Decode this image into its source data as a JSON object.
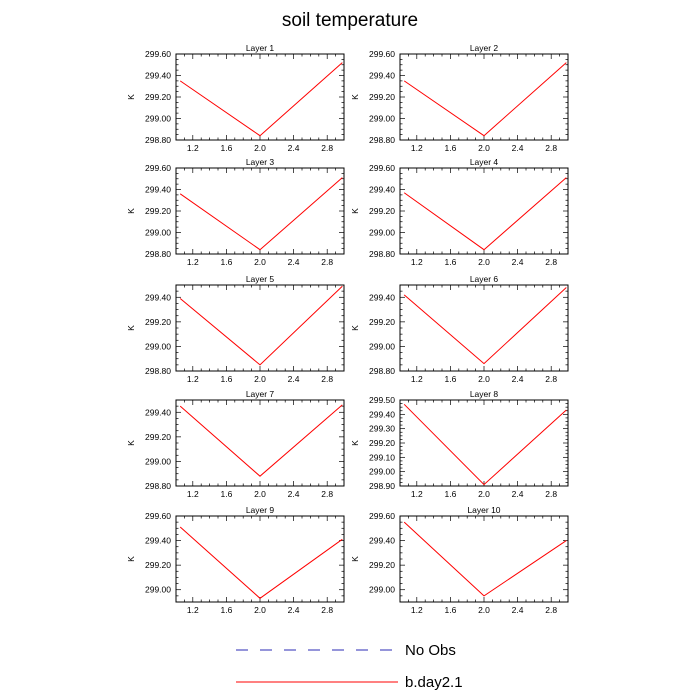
{
  "chart_data": {
    "type": "line",
    "title": "soil temperature",
    "xlabel": "",
    "ylabel": "K",
    "xlim": [
      1.0,
      3.0
    ],
    "x_ticks": [
      1.2,
      1.6,
      2.0,
      2.4,
      2.8
    ],
    "x_tick_labels": [
      "1.2",
      "1.6",
      "2.0",
      "2.4",
      "2.8"
    ],
    "legend": [
      {
        "name": "No Obs",
        "color": "#2b2bb5",
        "style": "dashed"
      },
      {
        "name": "b.day2.1",
        "color": "#ff0000",
        "style": "solid"
      }
    ],
    "panels": [
      {
        "title": "Layer 1",
        "ylim": [
          298.8,
          299.6
        ],
        "y_ticks": [
          298.8,
          299.0,
          299.2,
          299.4,
          299.6
        ],
        "y_tick_labels": [
          "298.80",
          "299.00",
          "299.20",
          "299.40",
          "299.60"
        ],
        "series": [
          {
            "name": "b.day2.1",
            "x": [
              1.05,
              2.0,
              2.98
            ],
            "values": [
              299.35,
              298.84,
              299.52
            ]
          }
        ]
      },
      {
        "title": "Layer 2",
        "ylim": [
          298.8,
          299.6
        ],
        "y_ticks": [
          298.8,
          299.0,
          299.2,
          299.4,
          299.6
        ],
        "y_tick_labels": [
          "298.80",
          "299.00",
          "299.20",
          "299.40",
          "299.60"
        ],
        "series": [
          {
            "name": "b.day2.1",
            "x": [
              1.05,
              2.0,
              2.98
            ],
            "values": [
              299.35,
              298.84,
              299.52
            ]
          }
        ]
      },
      {
        "title": "Layer 3",
        "ylim": [
          298.8,
          299.6
        ],
        "y_ticks": [
          298.8,
          299.0,
          299.2,
          299.4,
          299.6
        ],
        "y_tick_labels": [
          "298.80",
          "299.00",
          "299.20",
          "299.40",
          "299.60"
        ],
        "series": [
          {
            "name": "b.day2.1",
            "x": [
              1.05,
              2.0,
              2.98
            ],
            "values": [
              299.36,
              298.84,
              299.51
            ]
          }
        ]
      },
      {
        "title": "Layer 4",
        "ylim": [
          298.8,
          299.6
        ],
        "y_ticks": [
          298.8,
          299.0,
          299.2,
          299.4,
          299.6
        ],
        "y_tick_labels": [
          "298.80",
          "299.00",
          "299.20",
          "299.40",
          "299.60"
        ],
        "series": [
          {
            "name": "b.day2.1",
            "x": [
              1.05,
              2.0,
              2.98
            ],
            "values": [
              299.37,
              298.84,
              299.51
            ]
          }
        ]
      },
      {
        "title": "Layer 5",
        "ylim": [
          298.8,
          299.5
        ],
        "y_ticks": [
          298.8,
          299.0,
          299.2,
          299.4
        ],
        "y_tick_labels": [
          "298.80",
          "299.00",
          "299.20",
          "299.40"
        ],
        "series": [
          {
            "name": "b.day2.1",
            "x": [
              1.05,
              2.0,
              2.98
            ],
            "values": [
              299.39,
              298.85,
              299.49
            ]
          }
        ]
      },
      {
        "title": "Layer 6",
        "ylim": [
          298.8,
          299.5
        ],
        "y_ticks": [
          298.8,
          299.0,
          299.2,
          299.4
        ],
        "y_tick_labels": [
          "298.80",
          "299.00",
          "299.20",
          "299.40"
        ],
        "series": [
          {
            "name": "b.day2.1",
            "x": [
              1.05,
              2.0,
              2.98
            ],
            "values": [
              299.42,
              298.86,
              299.48
            ]
          }
        ]
      },
      {
        "title": "Layer 7",
        "ylim": [
          298.8,
          299.5
        ],
        "y_ticks": [
          298.8,
          299.0,
          299.2,
          299.4
        ],
        "y_tick_labels": [
          "298.80",
          "299.00",
          "299.20",
          "299.40"
        ],
        "series": [
          {
            "name": "b.day2.1",
            "x": [
              1.05,
              2.0,
              2.98
            ],
            "values": [
              299.45,
              298.88,
              299.46
            ]
          }
        ]
      },
      {
        "title": "Layer 8",
        "ylim": [
          298.9,
          299.5
        ],
        "y_ticks": [
          298.9,
          299.0,
          299.1,
          299.2,
          299.3,
          299.4,
          299.5
        ],
        "y_tick_labels": [
          "298.90",
          "299.00",
          "299.10",
          "299.20",
          "299.30",
          "299.40",
          "299.50"
        ],
        "series": [
          {
            "name": "b.day2.1",
            "x": [
              1.05,
              2.0,
              2.98
            ],
            "values": [
              299.47,
              298.91,
              299.43
            ]
          }
        ]
      },
      {
        "title": "Layer 9",
        "ylim": [
          298.9,
          299.6
        ],
        "y_ticks": [
          299.0,
          299.2,
          299.4,
          299.6
        ],
        "y_tick_labels": [
          "299.00",
          "299.20",
          "299.40",
          "299.60"
        ],
        "series": [
          {
            "name": "b.day2.1",
            "x": [
              1.05,
              2.0,
              2.98
            ],
            "values": [
              299.51,
              298.93,
              299.41
            ]
          }
        ]
      },
      {
        "title": "Layer 10",
        "ylim": [
          298.9,
          299.6
        ],
        "y_ticks": [
          299.0,
          299.2,
          299.4,
          299.6
        ],
        "y_tick_labels": [
          "299.00",
          "299.20",
          "299.40",
          "299.60"
        ],
        "series": [
          {
            "name": "b.day2.1",
            "x": [
              1.05,
              2.0,
              2.98
            ],
            "values": [
              299.55,
              298.95,
              299.4
            ]
          }
        ]
      }
    ]
  }
}
